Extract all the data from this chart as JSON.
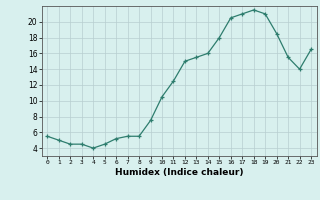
{
  "x": [
    0,
    1,
    2,
    3,
    4,
    5,
    6,
    7,
    8,
    9,
    10,
    11,
    12,
    13,
    14,
    15,
    16,
    17,
    18,
    19,
    20,
    21,
    22,
    23
  ],
  "y": [
    5.5,
    5.0,
    4.5,
    4.5,
    4.0,
    4.5,
    5.2,
    5.5,
    5.5,
    7.5,
    10.5,
    12.5,
    15.0,
    15.5,
    16.0,
    18.0,
    20.5,
    21.0,
    21.5,
    21.0,
    18.5,
    15.5,
    14.0,
    16.5
  ],
  "xlabel": "Humidex (Indice chaleur)",
  "ylim": [
    3,
    22
  ],
  "xlim": [
    -0.5,
    23.5
  ],
  "yticks": [
    4,
    6,
    8,
    10,
    12,
    14,
    16,
    18,
    20
  ],
  "xticks": [
    0,
    1,
    2,
    3,
    4,
    5,
    6,
    7,
    8,
    9,
    10,
    11,
    12,
    13,
    14,
    15,
    16,
    17,
    18,
    19,
    20,
    21,
    22,
    23
  ],
  "line_color": "#2e7d6e",
  "marker_color": "#2e7d6e",
  "bg_color": "#d8f0ee",
  "grid_color": "#b8ced0",
  "axis_color": "#555555"
}
